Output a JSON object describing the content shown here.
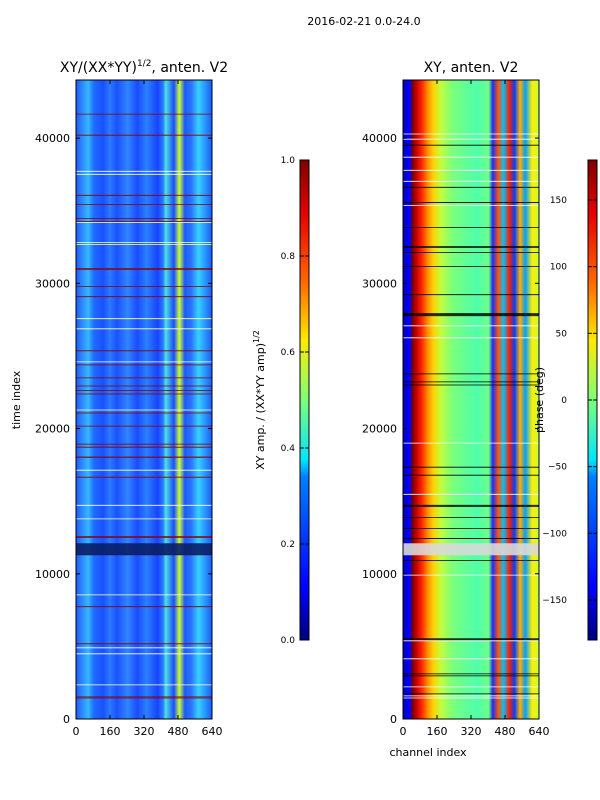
{
  "figure": {
    "suptitle": "2016-02-21 0.0-24.0"
  },
  "chart_data": [
    {
      "type": "heatmap",
      "title_main": "XY/(XX*YY)",
      "title_sup": "1/2",
      "title_tail": ", anten. V2",
      "xlabel": "",
      "ylabel": "time index",
      "xlim": [
        0,
        640
      ],
      "ylim": [
        0,
        44000
      ],
      "xticks": [
        0,
        160,
        320,
        480,
        640
      ],
      "yticks": [
        0,
        10000,
        20000,
        30000,
        40000
      ],
      "colorbar": {
        "label_main": "XY amp. / (XX*YY amp)",
        "label_sup": "1/2",
        "range": [
          0.0,
          1.0
        ],
        "ticks": [
          "0.0",
          "0.2",
          "0.4",
          "0.6",
          "0.8",
          "1.0"
        ],
        "tick_values": [
          0.0,
          0.2,
          0.4,
          0.6,
          0.8,
          1.0
        ]
      }
    },
    {
      "type": "heatmap",
      "title_main": "XY, anten. V2",
      "xlabel": "channel index",
      "ylabel": "",
      "xlim": [
        0,
        640
      ],
      "ylim": [
        0,
        44000
      ],
      "xticks": [
        0,
        160,
        320,
        480,
        640
      ],
      "yticks": [
        0,
        10000,
        20000,
        30000,
        40000
      ],
      "colorbar": {
        "label_main": "phase (deg)",
        "range": [
          -180,
          180
        ],
        "ticks": [
          "150",
          "100",
          "50",
          "0",
          "−50",
          "−100",
          "−150"
        ],
        "tick_values": [
          150,
          100,
          50,
          0,
          -50,
          -100,
          -150
        ]
      }
    }
  ]
}
